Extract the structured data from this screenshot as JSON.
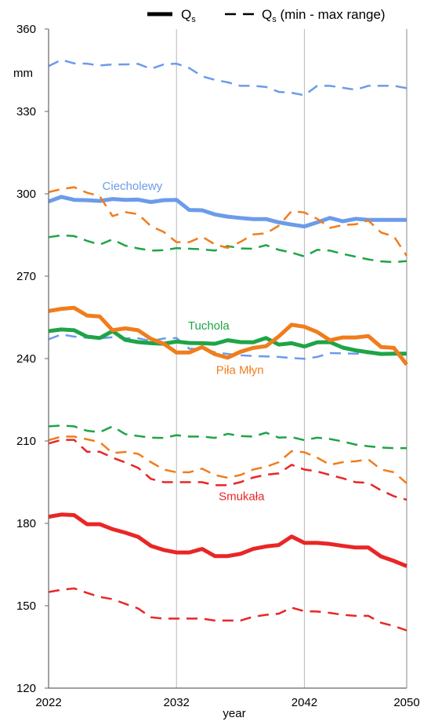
{
  "chart_data": {
    "type": "line",
    "xlabel": "year",
    "ylabel": "mm",
    "xlim": [
      2022,
      2050
    ],
    "ylim": [
      120,
      360
    ],
    "xticks": [
      2022,
      2032,
      2042,
      2050
    ],
    "yticks": [
      120,
      150,
      180,
      210,
      240,
      270,
      300,
      330,
      360
    ],
    "legend": {
      "position": "top-right",
      "solid_label": "Q",
      "solid_sub": "s",
      "dashed_label": "Q",
      "dashed_sub": "s",
      "dashed_suffix": " (min - max range)"
    },
    "years": [
      2022,
      2023,
      2024,
      2025,
      2026,
      2027,
      2028,
      2029,
      2030,
      2031,
      2032,
      2033,
      2034,
      2035,
      2036,
      2037,
      2038,
      2039,
      2040,
      2041,
      2042,
      2043,
      2044,
      2045,
      2046,
      2047,
      2048,
      2049,
      2050
    ],
    "series": [
      {
        "name": "Ciecholewy",
        "color": "#6c9bea",
        "mean": [
          297.2,
          298.9,
          297.8,
          297.7,
          297.4,
          298.1,
          297.8,
          297.9,
          297.0,
          297.7,
          297.8,
          294.1,
          294.0,
          292.5,
          291.7,
          291.2,
          290.8,
          290.8,
          289.6,
          288.8,
          288.1,
          289.6,
          291.2,
          290.0,
          290.9,
          290.5,
          290.5,
          290.5,
          290.5
        ],
        "max": [
          346.5,
          348.8,
          347.5,
          347.4,
          346.7,
          347.1,
          347.1,
          347.3,
          345.5,
          347.1,
          347.4,
          345.8,
          342.8,
          341.5,
          340.6,
          339.3,
          339.3,
          338.9,
          337.1,
          336.8,
          335.9,
          339.3,
          339.3,
          338.6,
          337.9,
          339.3,
          339.3,
          339.3,
          338.5
        ],
        "min": [
          247.0,
          248.8,
          248.0,
          247.6,
          247.3,
          247.8,
          247.4,
          247.4,
          246.4,
          247.3,
          247.5,
          243.6,
          243.4,
          242.3,
          241.7,
          241.2,
          240.9,
          240.8,
          240.6,
          240.2,
          239.9,
          240.6,
          242.0,
          241.9,
          241.8,
          242.0,
          242.0,
          242.0,
          242.0
        ],
        "label": "Ciecholewy",
        "label_x": 2026.2,
        "label_y": 301.5
      },
      {
        "name": "Tuchola",
        "color": "#1ea447",
        "mean": [
          250.0,
          250.6,
          250.3,
          248.0,
          247.5,
          250.0,
          246.8,
          246.0,
          245.6,
          245.4,
          246.2,
          245.7,
          245.6,
          245.4,
          246.7,
          246.0,
          245.9,
          247.5,
          245.1,
          245.6,
          244.4,
          245.9,
          246.0,
          244.0,
          243.0,
          242.3,
          241.7,
          241.8,
          241.8
        ],
        "max": [
          284.2,
          284.9,
          284.6,
          282.9,
          281.5,
          283.4,
          281.1,
          280.1,
          279.3,
          279.5,
          280.2,
          280.0,
          279.8,
          279.3,
          281.0,
          280.1,
          280.0,
          281.3,
          279.6,
          278.6,
          277.2,
          279.6,
          279.3,
          278.1,
          277.1,
          276.1,
          275.4,
          275.1,
          275.5
        ],
        "min": [
          215.3,
          215.6,
          215.3,
          213.7,
          213.2,
          215.3,
          212.5,
          211.8,
          211.2,
          211.1,
          212.1,
          211.6,
          211.6,
          211.1,
          212.6,
          211.8,
          211.6,
          213.0,
          211.2,
          211.4,
          210.3,
          211.2,
          210.7,
          209.8,
          208.7,
          208.1,
          207.6,
          207.4,
          207.4
        ],
        "label": "Tuchola",
        "label_x": 2032.9,
        "label_y": 250.6
      },
      {
        "name": "Piła Młyn",
        "color": "#f07d1c",
        "mean": [
          257.3,
          258.1,
          258.5,
          255.7,
          255.3,
          250.3,
          251.0,
          250.3,
          247.2,
          245.4,
          242.2,
          242.2,
          244.2,
          241.6,
          240.3,
          242.5,
          243.9,
          244.5,
          248.1,
          252.3,
          251.6,
          249.7,
          246.7,
          247.7,
          247.7,
          248.2,
          244.2,
          243.9,
          237.8
        ],
        "max": [
          300.6,
          301.7,
          302.4,
          300.4,
          299.1,
          291.9,
          293.3,
          292.6,
          288.2,
          286.1,
          282.4,
          282.4,
          284.4,
          281.6,
          280.3,
          282.5,
          285.2,
          285.6,
          288.4,
          293.7,
          293.2,
          290.9,
          287.6,
          288.6,
          288.9,
          290.3,
          285.9,
          284.5,
          277.4
        ],
        "min": [
          210.3,
          211.6,
          211.6,
          210.6,
          209.6,
          205.6,
          206.0,
          205.3,
          202.3,
          199.6,
          198.6,
          198.6,
          199.9,
          197.6,
          196.6,
          197.6,
          199.6,
          200.6,
          202.3,
          206.3,
          205.9,
          203.9,
          201.3,
          202.3,
          202.6,
          203.3,
          199.6,
          198.6,
          194.6
        ],
        "label": "Piła Młyn",
        "label_x": 2035.1,
        "label_y": 234.5
      },
      {
        "name": "Smukała",
        "color": "#e92626",
        "mean": [
          182.4,
          183.2,
          183.0,
          179.7,
          179.7,
          177.9,
          176.6,
          175.1,
          171.8,
          170.3,
          169.4,
          169.4,
          170.7,
          168.1,
          168.1,
          168.9,
          170.7,
          171.6,
          172.1,
          175.2,
          172.9,
          172.9,
          172.5,
          171.8,
          171.2,
          171.2,
          167.9,
          166.3,
          164.4
        ],
        "max": [
          209.1,
          210.4,
          210.4,
          206.1,
          206.1,
          203.9,
          202.2,
          200.2,
          196.2,
          195.0,
          195.0,
          195.0,
          195.0,
          193.9,
          193.9,
          195.0,
          196.7,
          197.7,
          198.2,
          201.3,
          199.6,
          198.9,
          197.6,
          196.4,
          195.0,
          194.7,
          192.0,
          189.9,
          188.6
        ],
        "min": [
          155.0,
          155.8,
          156.3,
          154.7,
          153.2,
          152.4,
          150.7,
          149.0,
          145.8,
          145.3,
          145.3,
          145.3,
          145.3,
          144.6,
          144.6,
          144.6,
          146.0,
          146.7,
          147.1,
          149.3,
          148.0,
          147.9,
          147.4,
          146.7,
          146.3,
          146.3,
          143.8,
          142.6,
          141.0
        ],
        "label": "Smukała",
        "label_x": 2035.3,
        "label_y": 188.5
      }
    ]
  }
}
